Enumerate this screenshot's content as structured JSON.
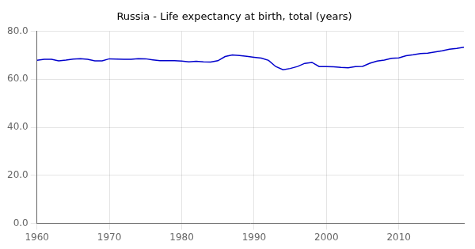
{
  "chart_data": {
    "type": "line",
    "title": "Russia - Life expectancy at birth, total (years)",
    "x": [
      1960,
      1961,
      1962,
      1963,
      1964,
      1965,
      1966,
      1967,
      1968,
      1969,
      1970,
      1971,
      1972,
      1973,
      1974,
      1975,
      1976,
      1977,
      1978,
      1979,
      1980,
      1981,
      1982,
      1983,
      1984,
      1985,
      1986,
      1987,
      1988,
      1989,
      1990,
      1991,
      1992,
      1993,
      1994,
      1995,
      1996,
      1997,
      1998,
      1999,
      2000,
      2001,
      2002,
      2003,
      2004,
      2005,
      2006,
      2007,
      2008,
      2009,
      2010,
      2011,
      2012,
      2013,
      2014,
      2015,
      2016,
      2017,
      2018,
      2019
    ],
    "values": [
      67.97,
      68.36,
      68.31,
      67.69,
      67.98,
      68.46,
      68.58,
      68.36,
      67.71,
      67.68,
      68.55,
      68.46,
      68.36,
      68.38,
      68.63,
      68.55,
      68.12,
      67.74,
      67.73,
      67.77,
      67.57,
      67.24,
      67.52,
      67.3,
      67.16,
      67.75,
      69.49,
      70.13,
      69.9,
      69.57,
      69.19,
      68.84,
      67.89,
      65.31,
      63.98,
      64.52,
      65.34,
      66.64,
      67.04,
      65.34,
      65.27,
      65.23,
      64.95,
      64.84,
      65.31,
      65.37,
      66.69,
      67.61,
      67.99,
      68.75,
      68.94,
      69.83,
      70.24,
      70.76,
      70.93,
      71.39,
      71.87,
      72.55,
      72.91,
      73.34
    ],
    "color": "#0000CC",
    "xlim": [
      1960,
      2019
    ],
    "xticks": [
      1960,
      1970,
      1980,
      1990,
      2000,
      2010
    ],
    "ylim": [
      0,
      80
    ],
    "yticks": [
      {
        "value": 0,
        "label": "0.0"
      },
      {
        "value": 20,
        "label": "20.0"
      },
      {
        "value": 40,
        "label": "40.0"
      },
      {
        "value": 60,
        "label": "60.0"
      },
      {
        "value": 80,
        "label": "80.0"
      }
    ],
    "grid": true
  }
}
